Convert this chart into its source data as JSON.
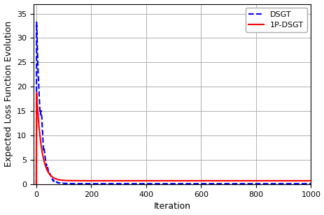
{
  "title": "",
  "xlabel": "Iteration",
  "ylabel": "Expected Loss Function Evolution",
  "xlim": [
    -10,
    1000
  ],
  "ylim": [
    0,
    37
  ],
  "yticks": [
    0,
    5,
    10,
    15,
    20,
    25,
    30,
    35
  ],
  "xticks": [
    0,
    200,
    400,
    600,
    800,
    1000
  ],
  "line1_label": "1P-DSGT",
  "line1_color": "#ff0000",
  "line1_style": "solid",
  "line1_linewidth": 1.5,
  "line2_label": "DSGT",
  "line2_color": "#0000ff",
  "line2_style": "dashed",
  "line2_linewidth": 1.5,
  "grid_color": "#b0b0b0",
  "background_color": "#ffffff",
  "legend_fontsize": 8,
  "axis_fontsize": 8,
  "label_fontsize": 9
}
